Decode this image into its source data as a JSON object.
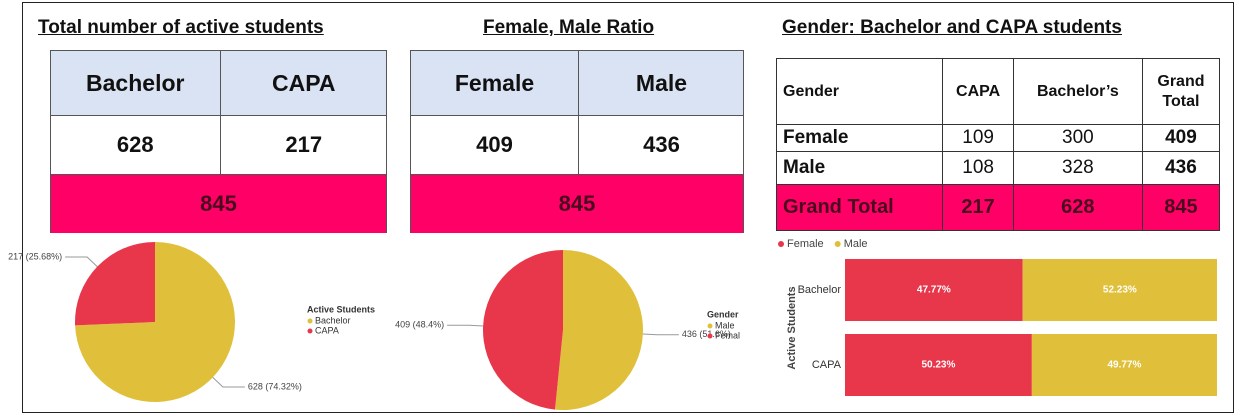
{
  "tables": [
    {
      "title": "Total number of active students",
      "header": [
        "Bachelor",
        "CAPA"
      ],
      "values": [
        628,
        217
      ],
      "total": 845
    },
    {
      "title": "Female, Male Ratio",
      "header": [
        "Female",
        "Male"
      ],
      "values": [
        409,
        436
      ],
      "total": 845
    },
    {
      "title": "Gender: Bachelor and CAPA students",
      "header": [
        "Gender",
        "CAPA",
        "Bachelor’s",
        "Grand Total"
      ],
      "rows": [
        [
          "Female",
          109,
          300,
          409
        ],
        [
          "Male",
          108,
          328,
          436
        ],
        [
          "Grand Total",
          217,
          628,
          845
        ]
      ]
    }
  ],
  "chart_data": [
    {
      "type": "pie",
      "legend_title": "Active Students",
      "categories": [
        "Bachelor",
        "CAPA"
      ],
      "values": [
        628,
        217
      ],
      "value_labels": [
        "628 (74.32%)",
        "217 (25.68%)"
      ],
      "colors": [
        "#e0c03a",
        "#e8374a"
      ]
    },
    {
      "type": "pie",
      "legend_title": "Gender",
      "categories": [
        "Male",
        "Femal"
      ],
      "values": [
        436,
        409
      ],
      "value_labels": [
        "436 (51.6%)",
        "409 (48.4%)"
      ],
      "colors": [
        "#e0c03a",
        "#e8374a"
      ]
    },
    {
      "type": "bar",
      "orientation": "horizontal",
      "stacked": true,
      "ylabel": "Active Students",
      "categories": [
        "Bachelor",
        "CAPA"
      ],
      "xlim": [
        0,
        100
      ],
      "series": [
        {
          "name": "Female",
          "color": "#e8374a",
          "values": [
            47.77,
            50.23
          ],
          "value_labels": [
            "47.77%",
            "50.23%"
          ]
        },
        {
          "name": "Male",
          "color": "#e0c03a",
          "values": [
            52.23,
            49.77
          ],
          "value_labels": [
            "52.23%",
            "49.77%"
          ]
        }
      ]
    }
  ]
}
